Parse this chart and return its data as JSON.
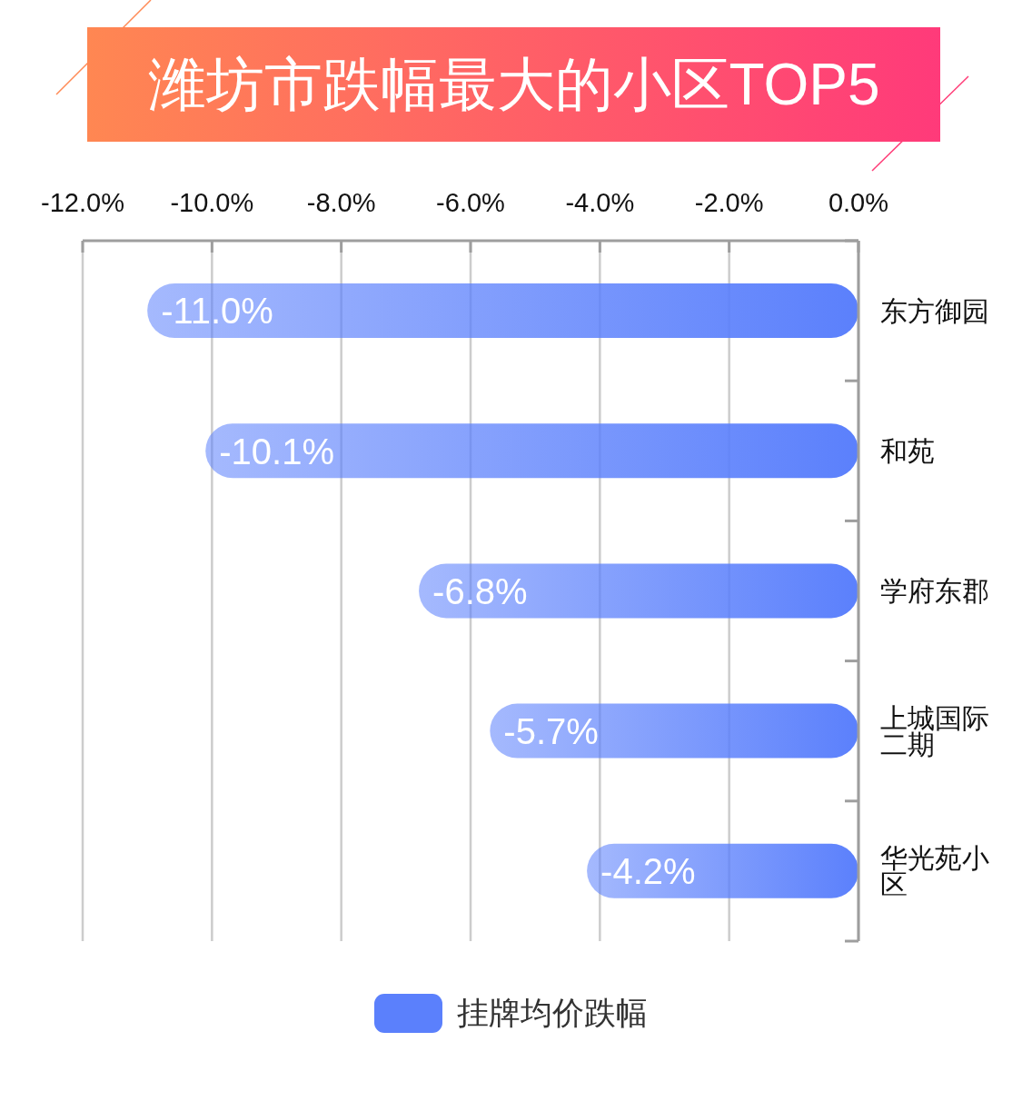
{
  "chart_data": {
    "type": "bar",
    "orientation": "horizontal",
    "title": "潍坊市跌幅最大的小区TOP5",
    "categories": [
      "东方御园",
      "和苑",
      "学府东郡",
      "上城国际二期",
      "华光苑小区"
    ],
    "series": [
      {
        "name": "挂牌均价跌幅",
        "color": "#5b80fc",
        "values": [
          -11.0,
          -10.1,
          -6.8,
          -5.7,
          -4.2
        ],
        "value_labels": [
          "-11.0%",
          "-10.1%",
          "-6.8%",
          "-5.7%",
          "-4.2%"
        ]
      }
    ],
    "xlim": [
      -12,
      0
    ],
    "xticks": [
      {
        "value": -12,
        "label": "-12.0%"
      },
      {
        "value": -10,
        "label": "-10.0%"
      },
      {
        "value": -8,
        "label": "-8.0%"
      },
      {
        "value": -6,
        "label": "-6.0%"
      },
      {
        "value": -4,
        "label": "-4.0%"
      },
      {
        "value": -2,
        "label": "-2.0%"
      },
      {
        "value": 0,
        "label": "0.0%"
      }
    ],
    "grid": "x",
    "legend": "bottom"
  }
}
